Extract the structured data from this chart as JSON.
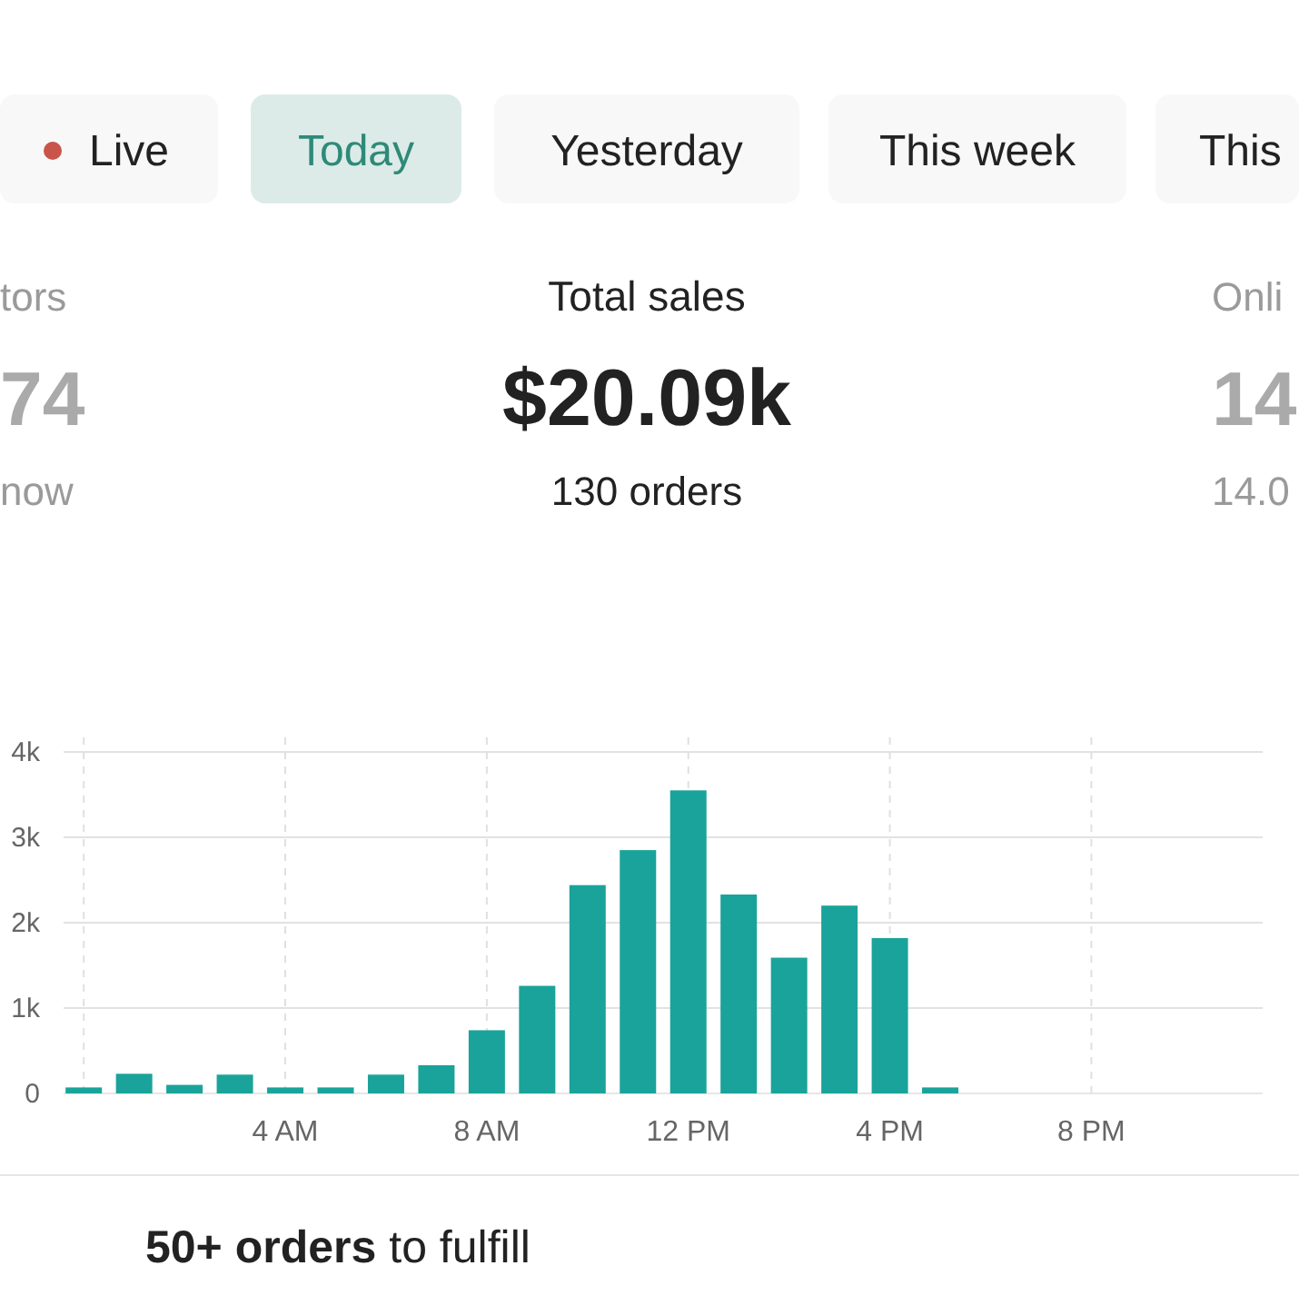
{
  "chart_data": {
    "type": "bar",
    "title": "Total sales",
    "subtitle": "$20.09k",
    "annotations": [
      "130 orders",
      "Live",
      "Today",
      "Yesterday",
      "This week",
      "This",
      "tors",
      "74",
      "now",
      "Onli",
      "14",
      "14.0",
      "50+ orders",
      "to fulfill"
    ],
    "categories": [
      null,
      null,
      null,
      null,
      "4 AM",
      null,
      null,
      null,
      "8 AM",
      null,
      null,
      null,
      "12 PM",
      null,
      null,
      null,
      "4 PM",
      null,
      null,
      null,
      "8 PM",
      null,
      null,
      null
    ],
    "values": [
      70,
      230,
      100,
      220,
      70,
      70,
      220,
      330,
      740,
      1260,
      2440,
      2850,
      3550,
      2330,
      1590,
      2200,
      1820,
      70,
      0,
      0,
      0,
      0,
      0,
      0
    ],
    "color": "#1aa39a",
    "ylim": [
      0,
      4000
    ],
    "yticks": [
      {
        "value": 0,
        "label": "0"
      },
      {
        "value": 1000,
        "label": "1k"
      },
      {
        "value": 2000,
        "label": "2k"
      },
      {
        "value": 3000,
        "label": "3k"
      },
      {
        "value": 4000,
        "label": "4k"
      }
    ],
    "grid": true
  }
}
